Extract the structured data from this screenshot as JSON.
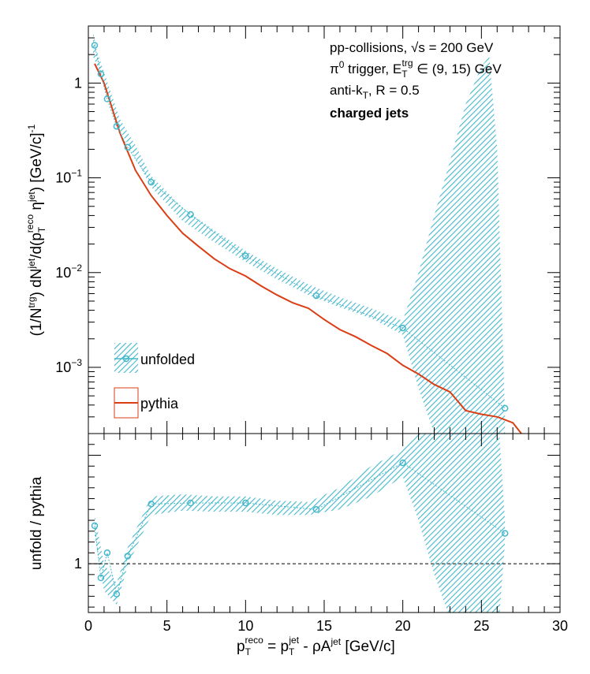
{
  "chart_data": [
    {
      "type": "line",
      "panel": "spectrum",
      "ylog": true,
      "xlim": [
        0,
        30
      ],
      "ylim": [
        0.0002,
        4
      ],
      "x_ticks": [
        "0",
        "5",
        "10",
        "15",
        "20",
        "25",
        "30"
      ],
      "y_ticks": [
        {
          "value": 1,
          "base": "1",
          "exp": ""
        },
        {
          "value": 0.1,
          "base": "10",
          "exp": "−1"
        },
        {
          "value": 0.01,
          "base": "10",
          "exp": "−2"
        },
        {
          "value": 0.001,
          "base": "10",
          "exp": "−3"
        }
      ],
      "ylabel": {
        "p1": "(1/N",
        "p1sup": "trg",
        "p2": ") dN",
        "p2sup": "jet",
        "p3": "/d(p",
        "p3sup": "reco",
        "p3sub": "T",
        "p4": " η",
        "p4sup": "jet",
        "p5": ") [GeV/c]",
        "p5sup": "-1"
      },
      "annotations": {
        "line1_a": "pp-collisions, ",
        "line1_b": "√s",
        "line1_c": " = 200 GeV",
        "line2_a": "π",
        "line2_sup": "0",
        "line2_b": " trigger, E",
        "line2_sub": "T",
        "line2_sup2": "trg",
        "line2_c": " ∈ (9, 15) GeV",
        "line3_a": "anti-k",
        "line3_sub": "T",
        "line3_b": ", R = 0.5",
        "line4": "charged jets"
      },
      "legend": {
        "position": "bottom-left",
        "entries": [
          "unfolded",
          "pythia"
        ]
      },
      "colors": {
        "unfolded": "#43b7cc",
        "band": "#7fd0de",
        "pythia": "#d93e14"
      },
      "series": [
        {
          "name": "unfolded",
          "x": [
            0.4,
            0.8,
            1.2,
            1.8,
            2.5,
            4.0,
            6.5,
            10.0,
            14.5,
            20.0,
            26.5
          ],
          "y": [
            2.5,
            1.25,
            0.68,
            0.35,
            0.21,
            0.09,
            0.041,
            0.015,
            0.0057,
            0.0026,
            0.00037
          ]
        },
        {
          "name": "unfolded_band",
          "x": [
            0.3,
            0.5,
            1,
            2,
            3,
            4,
            6,
            8,
            10,
            12,
            14,
            16,
            18,
            19,
            20,
            21,
            22,
            23,
            24,
            25,
            25.5,
            26,
            26.5
          ],
          "y_low": [
            1.9,
            1.6,
            0.95,
            0.32,
            0.16,
            0.08,
            0.035,
            0.021,
            0.013,
            0.0085,
            0.0058,
            0.0043,
            0.0033,
            0.0027,
            0.0022,
            0.0006,
            0.0002,
            0.0001,
            0.0001,
            0.0001,
            0.0001,
            0.0001,
            0.0001
          ],
          "y_high": [
            3.5,
            2.3,
            1.3,
            0.42,
            0.22,
            0.105,
            0.048,
            0.028,
            0.017,
            0.011,
            0.0075,
            0.0055,
            0.0042,
            0.0036,
            0.0031,
            0.01,
            0.04,
            0.15,
            0.6,
            1.5,
            1.9,
            0.2,
            0.0003
          ]
        },
        {
          "name": "pythia",
          "x": [
            0.4,
            1,
            1.5,
            2,
            2.5,
            3,
            4,
            5,
            6,
            7,
            8,
            9,
            10,
            11,
            12,
            13,
            14,
            15,
            16,
            17,
            18,
            19,
            20,
            21,
            22,
            23,
            24,
            25,
            26,
            27,
            28
          ],
          "y": [
            1.6,
            1.0,
            0.55,
            0.3,
            0.19,
            0.12,
            0.065,
            0.04,
            0.026,
            0.019,
            0.014,
            0.011,
            0.0092,
            0.0072,
            0.0058,
            0.0048,
            0.0042,
            0.0032,
            0.0025,
            0.0021,
            0.0017,
            0.0014,
            0.00105,
            0.00085,
            0.00066,
            0.00055,
            0.00035,
            0.00032,
            0.0003,
            0.00026,
            0.00016
          ]
        }
      ]
    },
    {
      "type": "line",
      "panel": "ratio",
      "xlim": [
        0,
        30
      ],
      "ylim": [
        0.55,
        2.2
      ],
      "ylabel": "unfold / pythia",
      "xlabel": {
        "a": "p",
        "a_sup": "reco",
        "a_sub": "T",
        "b": " = p",
        "b_sup": "jet",
        "b_sub": "T",
        "c": " - ρA",
        "c_sup": "jet",
        "d": " [GeV/c]"
      },
      "y_ticks": [
        "1"
      ],
      "reference_line": 1,
      "series": [
        {
          "name": "ratio",
          "x": [
            0.4,
            0.8,
            1.2,
            1.8,
            2.5,
            4.0,
            6.5,
            10.0,
            14.5,
            20.0,
            26.5
          ],
          "y": [
            1.35,
            0.87,
            1.1,
            0.72,
            1.07,
            1.55,
            1.56,
            1.56,
            1.5,
            1.93,
            1.28
          ]
        },
        {
          "name": "ratio_band",
          "x": [
            0.4,
            1,
            1.8,
            2.5,
            4,
            6,
            8,
            10,
            12,
            14,
            16,
            18,
            20,
            21,
            22,
            23,
            24,
            25,
            25.5,
            26,
            26.5
          ],
          "y_low": [
            1.25,
            0.75,
            0.62,
            0.98,
            1.45,
            1.49,
            1.48,
            1.48,
            1.45,
            1.45,
            1.5,
            1.62,
            1.8,
            1.4,
            0.9,
            0.5,
            0.2,
            0.05,
            0.0,
            0.25,
            1.2
          ],
          "y_high": [
            1.45,
            1.0,
            0.82,
            1.15,
            1.62,
            1.64,
            1.62,
            1.62,
            1.58,
            1.57,
            1.7,
            1.9,
            2.05,
            2.2,
            2.3,
            2.5,
            2.8,
            3.0,
            3.0,
            2.5,
            1.4
          ]
        }
      ]
    }
  ]
}
